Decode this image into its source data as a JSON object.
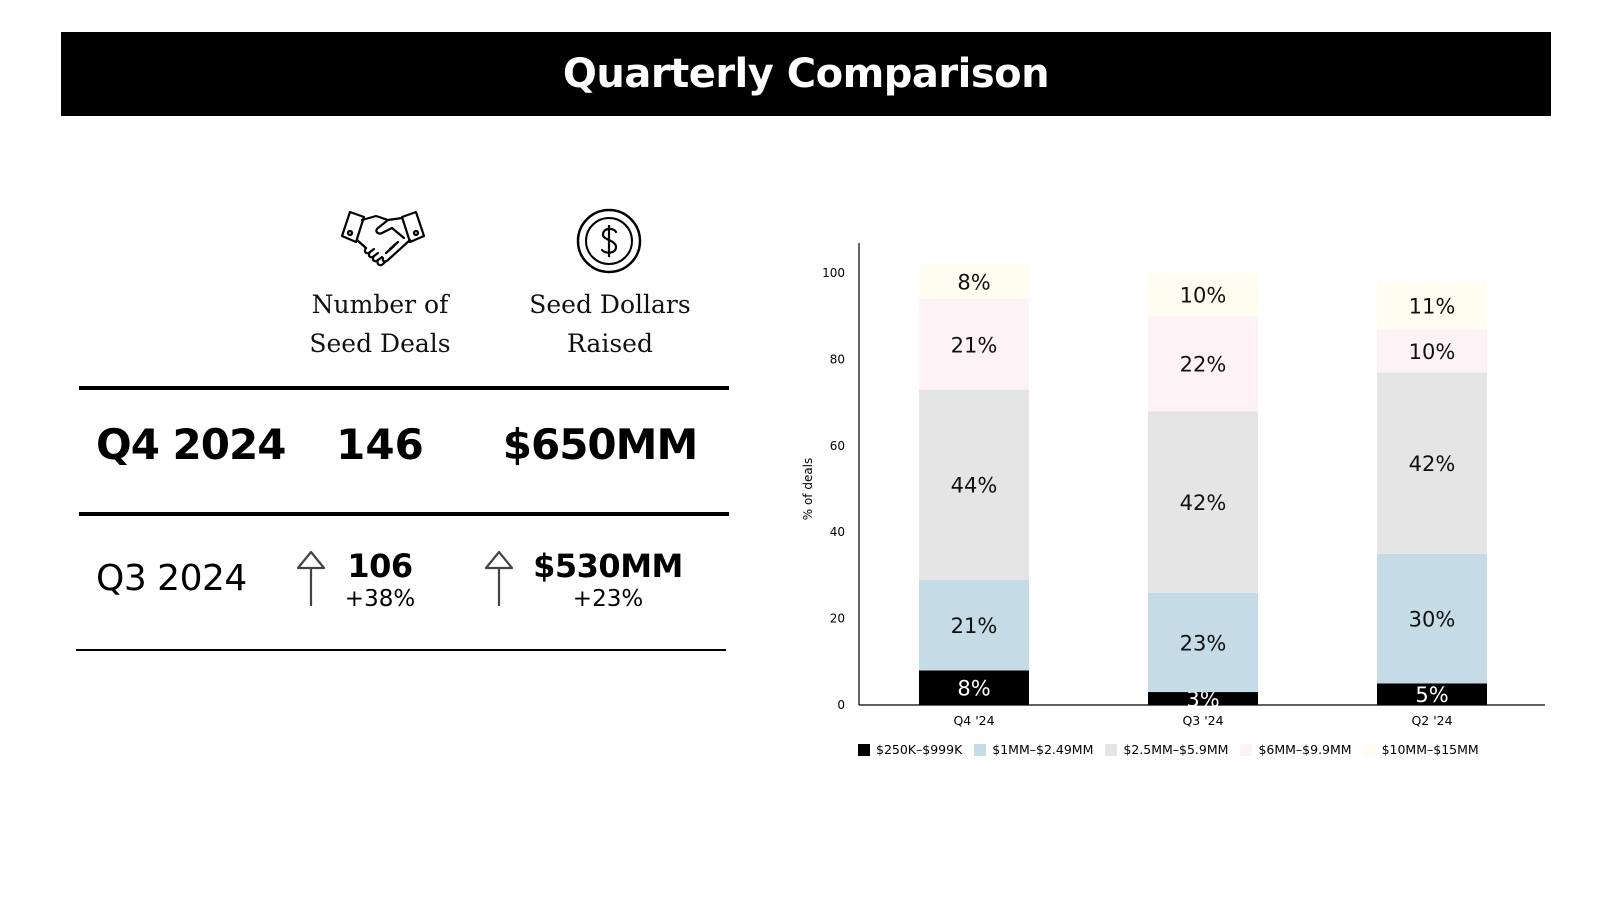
{
  "header": {
    "title": "Quarterly Comparison"
  },
  "icons": {
    "deals": "handshake-icon",
    "dollars": "dollar-coin-icon",
    "increase": "arrow-up-icon"
  },
  "columns": {
    "deals_line1": "Number of",
    "deals_line2": "Seed Deals",
    "dollars_line1": "Seed Dollars",
    "dollars_line2": "Raised"
  },
  "current": {
    "label": "Q4 2024",
    "deals": "146",
    "dollars": "$650MM"
  },
  "previous": {
    "label": "Q3 2024",
    "deals": "106",
    "deals_change": "+38%",
    "dollars": "$530MM",
    "dollars_change": "+23%"
  },
  "chart_data": {
    "type": "bar",
    "stacked": true,
    "ylabel": "% of deals",
    "ylim": [
      0,
      100
    ],
    "yticks": [
      0,
      20,
      40,
      60,
      80,
      100
    ],
    "categories": [
      "Q4 '24",
      "Q3 '24",
      "Q2 '24"
    ],
    "legend_position": "bottom",
    "series": [
      {
        "name": "$250K–$999K",
        "color": "#000000",
        "label_color": "#ffffff",
        "values": [
          8,
          3,
          5
        ],
        "labels": [
          "8%",
          "3%",
          "5%"
        ]
      },
      {
        "name": "$1MM–$2.49MM",
        "color": "#c5dbe5",
        "label_color": "#111111",
        "values": [
          21,
          23,
          30
        ],
        "labels": [
          "21%",
          "23%",
          "30%"
        ]
      },
      {
        "name": "$2.5MM–$5.9MM",
        "color": "#e5e5e5",
        "label_color": "#111111",
        "values": [
          44,
          42,
          42
        ],
        "labels": [
          "44%",
          "42%",
          "42%"
        ]
      },
      {
        "name": "$6MM–$9.9MM",
        "color": "#fdf2f5",
        "label_color": "#111111",
        "values": [
          21,
          22,
          10
        ],
        "labels": [
          "21%",
          "22%",
          "10%"
        ]
      },
      {
        "name": "$10MM–$15MM",
        "color": "#fefdf0",
        "label_color": "#111111",
        "values": [
          8,
          10,
          11
        ],
        "labels": [
          "8%",
          "10%",
          "11%"
        ]
      }
    ]
  }
}
